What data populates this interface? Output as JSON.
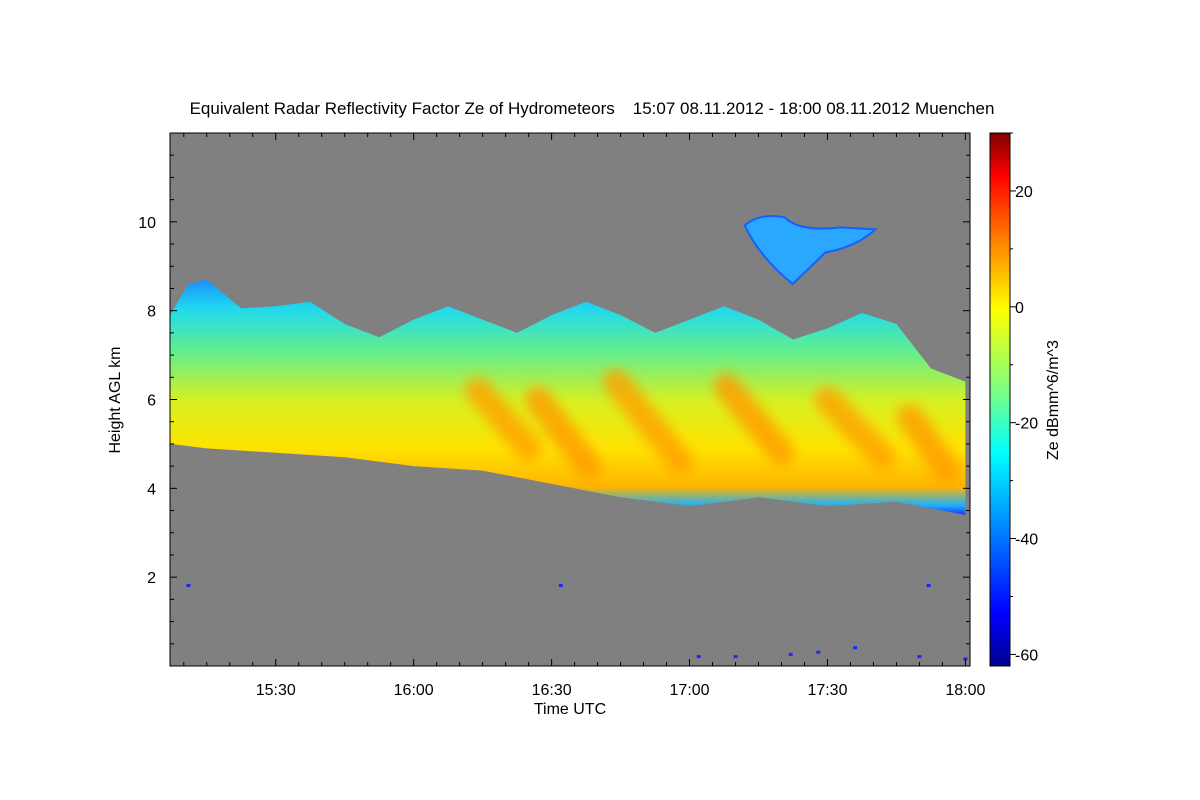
{
  "chart_data": {
    "type": "heatmap",
    "title": "Equivalent Radar Reflectivity Factor Ze of Hydrometeors",
    "time_range": "15:07 08.11.2012 - 18:00 08.11.2012",
    "location": "Muenchen",
    "xlabel": "Time UTC",
    "ylabel": "Height AGL km",
    "x_tick_labels": [
      "15:30",
      "16:00",
      "16:30",
      "17:00",
      "17:30",
      "18:00"
    ],
    "x_ticks_min": [
      30,
      60,
      90,
      120,
      150,
      180
    ],
    "xlim_min": [
      7,
      181
    ],
    "y_ticks": [
      2,
      4,
      6,
      8,
      10
    ],
    "y_tick_labels": [
      "2",
      "4",
      "6",
      "8",
      "10"
    ],
    "ylim": [
      0,
      12
    ],
    "colorbar": {
      "label": "Ze dBmm^6/m^3",
      "ticks": [
        -60,
        -40,
        -20,
        0,
        20
      ],
      "tick_labels": [
        "-60",
        "-40",
        "-20",
        "0",
        "20"
      ],
      "range": [
        -62,
        30
      ],
      "colors": [
        "#00008f",
        "#0000ff",
        "#007fff",
        "#00ffff",
        "#7fff7f",
        "#ffff00",
        "#ff7f00",
        "#ff0000",
        "#7f0000"
      ]
    },
    "no_echo_color": "#808080",
    "cloud_layer": {
      "times_min": [
        7,
        15,
        30,
        45,
        60,
        75,
        90,
        105,
        120,
        135,
        150,
        165,
        180
      ],
      "base_km": [
        5.0,
        4.9,
        4.8,
        4.7,
        4.5,
        4.4,
        4.1,
        3.8,
        3.6,
        3.8,
        3.6,
        3.7,
        3.4
      ],
      "top_km": [
        7.9,
        8.7,
        8.1,
        7.7,
        7.8,
        7.8,
        7.9,
        7.9,
        7.8,
        7.8,
        7.6,
        7.7,
        6.4
      ]
    },
    "upper_cloud": {
      "time_min": [
        132,
        155
      ],
      "height_km": [
        8.6,
        10.1
      ]
    },
    "fall_streaks_peak_dBZ": 5
  }
}
